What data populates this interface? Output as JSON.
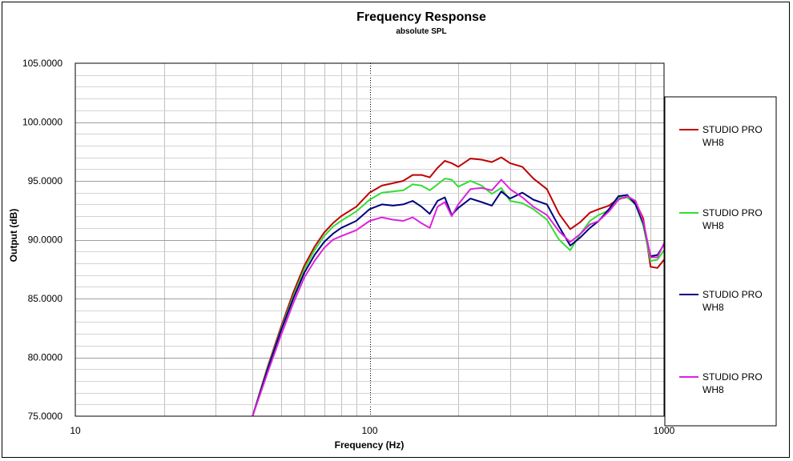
{
  "chart_data": {
    "type": "line",
    "title": "Frequency Response",
    "subtitle": "absolute SPL",
    "xlabel": "Frequency (Hz)",
    "ylabel": "Output (dB)",
    "xscale": "log",
    "xlim": [
      10,
      1000
    ],
    "ylim": [
      75,
      105
    ],
    "x_ticks": [
      10,
      100,
      1000
    ],
    "x_tick_labels": [
      "10",
      "100",
      "1000"
    ],
    "y_ticks": [
      75,
      80,
      85,
      90,
      95,
      100,
      105
    ],
    "y_tick_labels": [
      "75.0000",
      "80.0000",
      "85.0000",
      "90.0000",
      "95.0000",
      "100.0000",
      "105.0000"
    ],
    "grid": true,
    "legend_position": "right",
    "x": [
      40,
      45,
      50,
      55,
      60,
      65,
      70,
      75,
      80,
      90,
      100,
      110,
      120,
      130,
      140,
      150,
      160,
      170,
      180,
      190,
      200,
      220,
      240,
      260,
      280,
      300,
      330,
      360,
      400,
      440,
      480,
      520,
      560,
      600,
      650,
      700,
      750,
      800,
      850,
      900,
      950,
      1000
    ],
    "series": [
      {
        "name": "STUDIO PRO WH8",
        "color": "#c00000",
        "values": [
          75.0,
          79.2,
          82.6,
          85.5,
          87.8,
          89.4,
          90.6,
          91.4,
          92.0,
          92.8,
          94.0,
          94.6,
          94.8,
          95.0,
          95.5,
          95.5,
          95.3,
          96.1,
          96.7,
          96.5,
          96.2,
          96.9,
          96.8,
          96.6,
          97.0,
          96.5,
          96.2,
          95.2,
          94.3,
          92.2,
          90.9,
          91.5,
          92.3,
          92.6,
          92.9,
          93.5,
          93.6,
          93.2,
          91.8,
          87.7,
          87.6,
          88.3
        ]
      },
      {
        "name": "STUDIO PRO WH8",
        "color": "#33dd33",
        "values": [
          75.0,
          79.1,
          82.4,
          85.2,
          87.5,
          89.1,
          90.3,
          91.1,
          91.6,
          92.4,
          93.4,
          94.0,
          94.1,
          94.2,
          94.7,
          94.6,
          94.2,
          94.7,
          95.2,
          95.1,
          94.5,
          95.0,
          94.6,
          93.9,
          94.4,
          93.3,
          93.1,
          92.6,
          91.7,
          90.0,
          89.1,
          90.5,
          91.6,
          92.1,
          92.5,
          93.6,
          93.6,
          93.0,
          91.2,
          88.2,
          88.3,
          89.1
        ]
      },
      {
        "name": "STUDIO PRO WH8",
        "color": "#000080",
        "values": [
          75.0,
          79.0,
          82.3,
          85.0,
          87.2,
          88.7,
          89.8,
          90.5,
          91.0,
          91.6,
          92.6,
          93.0,
          92.9,
          93.0,
          93.3,
          92.8,
          92.2,
          93.3,
          93.6,
          92.1,
          92.7,
          93.5,
          93.2,
          92.9,
          94.1,
          93.5,
          94.0,
          93.4,
          93.0,
          91.1,
          89.5,
          90.2,
          91.0,
          91.6,
          92.6,
          93.7,
          93.8,
          93.0,
          91.4,
          88.6,
          88.7,
          89.6
        ]
      },
      {
        "name": "STUDIO PRO WH8",
        "color": "#dd22dd",
        "values": [
          75.0,
          78.7,
          81.9,
          84.6,
          86.8,
          88.2,
          89.3,
          90.0,
          90.3,
          90.8,
          91.6,
          91.9,
          91.7,
          91.6,
          91.9,
          91.4,
          91.0,
          92.8,
          93.2,
          92.0,
          93.0,
          94.3,
          94.4,
          94.2,
          95.1,
          94.3,
          93.6,
          92.8,
          92.1,
          90.7,
          89.8,
          90.5,
          91.3,
          91.6,
          92.4,
          93.4,
          93.7,
          93.3,
          91.6,
          88.5,
          88.5,
          89.7
        ]
      }
    ]
  }
}
